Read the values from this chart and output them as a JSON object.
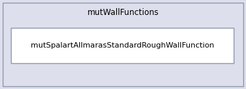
{
  "parent_label": "mutWallFunctions",
  "child_label": "mutSpalartAllmarasStandardRoughWallFunction",
  "parent_bg": "#DDE0EC",
  "child_bg": "#FFFFFF",
  "fig_bg": "#DDE0EC",
  "outer_border_color": "#9098B0",
  "inner_border_color": "#9098B0",
  "text_color": "#000000",
  "parent_fontsize": 8.5,
  "child_fontsize": 8.0,
  "fig_width": 3.6,
  "fig_height": 1.31,
  "dpi": 100
}
